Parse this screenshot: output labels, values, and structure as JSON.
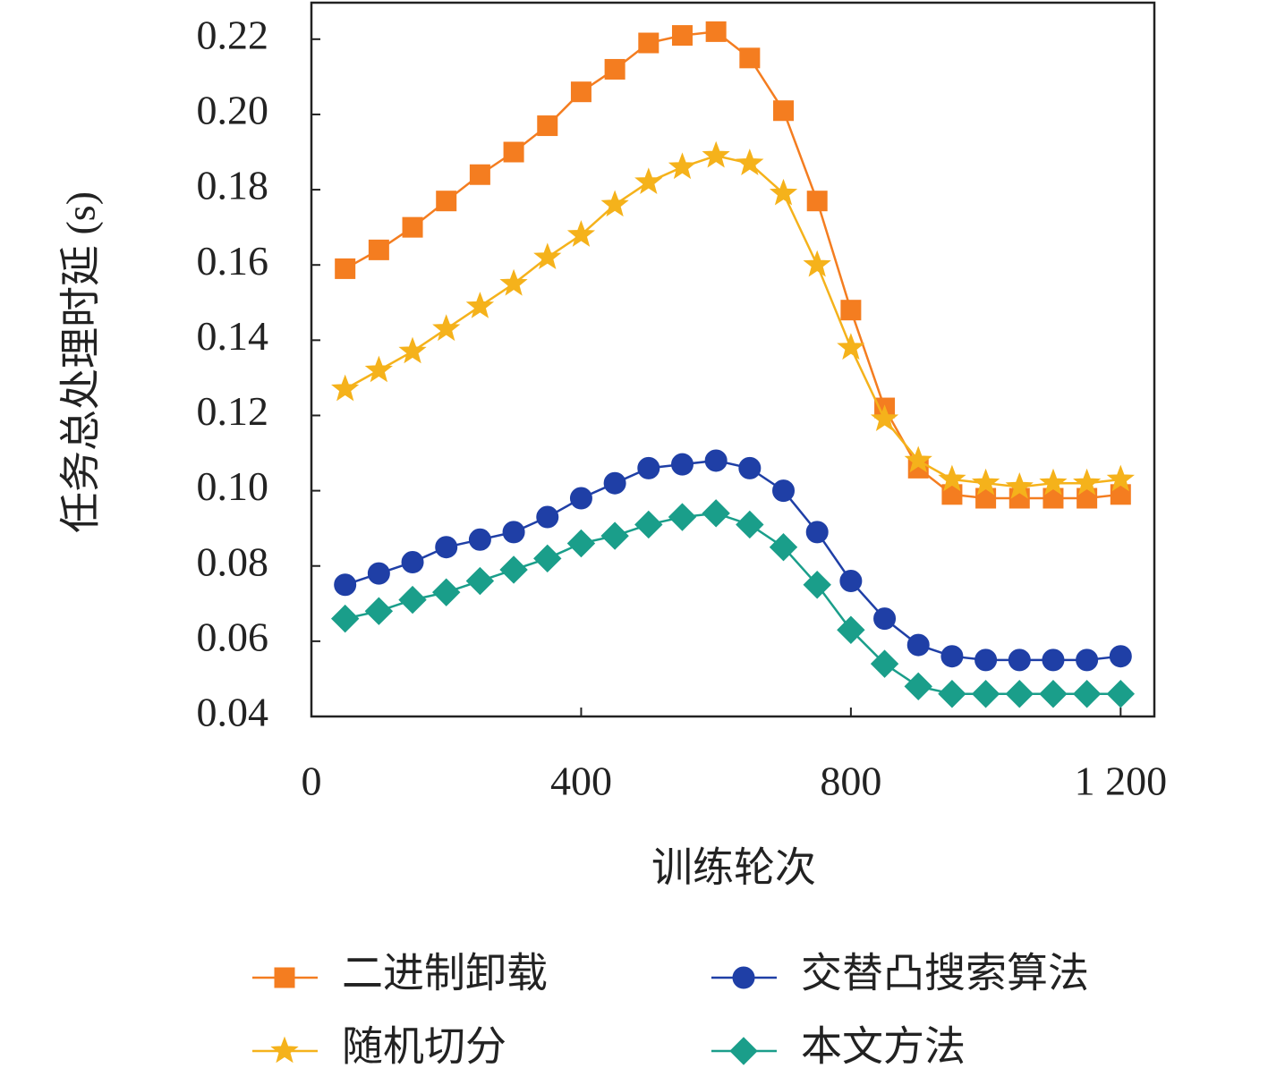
{
  "chart_data": {
    "type": "line",
    "x_label": "训练轮次",
    "y_label": "任务总处理时延 (s)",
    "x": [
      50,
      100,
      150,
      200,
      250,
      300,
      350,
      400,
      450,
      500,
      550,
      600,
      650,
      700,
      750,
      800,
      850,
      900,
      950,
      1000,
      1050,
      1100,
      1150,
      1200
    ],
    "series": [
      {
        "name": "二进制卸载",
        "color": "#f47d20",
        "marker": "square",
        "values": [
          0.159,
          0.164,
          0.17,
          0.177,
          0.184,
          0.19,
          0.197,
          0.206,
          0.212,
          0.219,
          0.221,
          0.222,
          0.215,
          0.201,
          0.177,
          0.148,
          0.122,
          0.106,
          0.099,
          0.098,
          0.098,
          0.098,
          0.098,
          0.099
        ]
      },
      {
        "name": "随机切分",
        "color": "#f5b21b",
        "marker": "star",
        "values": [
          0.127,
          0.132,
          0.137,
          0.143,
          0.149,
          0.155,
          0.162,
          0.168,
          0.176,
          0.182,
          0.186,
          0.189,
          0.187,
          0.179,
          0.16,
          0.138,
          0.119,
          0.108,
          0.103,
          0.102,
          0.101,
          0.102,
          0.102,
          0.103
        ]
      },
      {
        "name": "交替凸搜索算法",
        "color": "#1f3fa6",
        "marker": "circle",
        "values": [
          0.075,
          0.078,
          0.081,
          0.085,
          0.087,
          0.089,
          0.093,
          0.098,
          0.102,
          0.106,
          0.107,
          0.108,
          0.106,
          0.1,
          0.089,
          0.076,
          0.066,
          0.059,
          0.056,
          0.055,
          0.055,
          0.055,
          0.055,
          0.056
        ]
      },
      {
        "name": "本文方法",
        "color": "#1a9e8a",
        "marker": "diamond",
        "values": [
          0.066,
          0.068,
          0.071,
          0.073,
          0.076,
          0.079,
          0.082,
          0.086,
          0.088,
          0.091,
          0.093,
          0.094,
          0.091,
          0.085,
          0.075,
          0.063,
          0.054,
          0.048,
          0.046,
          0.046,
          0.046,
          0.046,
          0.046,
          0.046
        ]
      }
    ],
    "xlim": [
      0,
      1250
    ],
    "xticks": [
      0,
      400,
      800,
      {
        "value": 1200,
        "label": "1 200"
      }
    ],
    "ylim": [
      0.04,
      0.2297
    ],
    "yticks": [
      0.04,
      0.06,
      0.08,
      {
        "value": 0.1,
        "label": "0.10"
      },
      0.12,
      0.14,
      0.16,
      0.18,
      {
        "value": 0.2,
        "label": "0.20"
      },
      0.22
    ],
    "grid": false
  }
}
